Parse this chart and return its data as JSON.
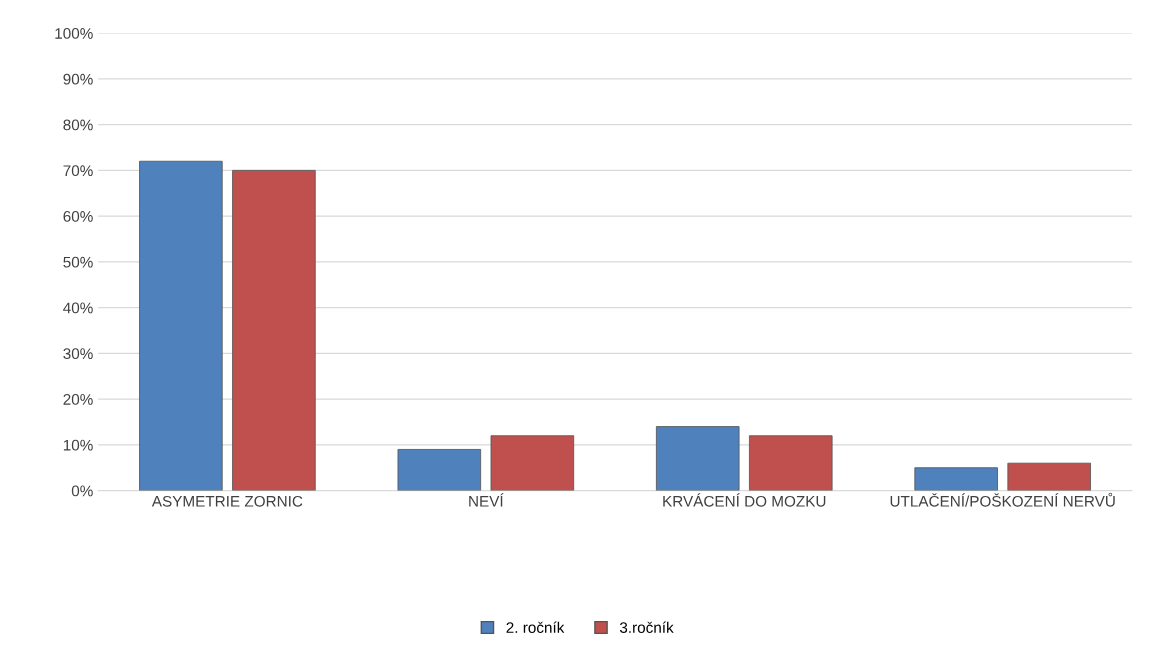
{
  "chart_data": {
    "type": "bar",
    "categories": [
      "ASYMETRIE ZORNIC",
      "NEVÍ",
      "KRVÁCENÍ DO MOZKU",
      "UTLAČENÍ/POŠKOZENÍ NERVŮ"
    ],
    "series": [
      {
        "name": "2. ročník",
        "color": "#4f81bd",
        "values": [
          72,
          9,
          14,
          5
        ]
      },
      {
        "name": "3.ročník",
        "color": "#c0504d",
        "values": [
          70,
          12,
          12,
          6
        ]
      }
    ],
    "ylim": [
      0,
      100
    ],
    "yticks": [
      {
        "value": 0,
        "label": "0%"
      },
      {
        "value": 10,
        "label": "10%"
      },
      {
        "value": 20,
        "label": "20%"
      },
      {
        "value": 30,
        "label": "30%"
      },
      {
        "value": 40,
        "label": "40%"
      },
      {
        "value": 50,
        "label": "50%"
      },
      {
        "value": 60,
        "label": "60%"
      },
      {
        "value": 70,
        "label": "70%"
      },
      {
        "value": 80,
        "label": "80%"
      },
      {
        "value": 90,
        "label": "90%"
      },
      {
        "value": 100,
        "label": "100%"
      }
    ],
    "grid": "y",
    "legend": "bottom"
  }
}
